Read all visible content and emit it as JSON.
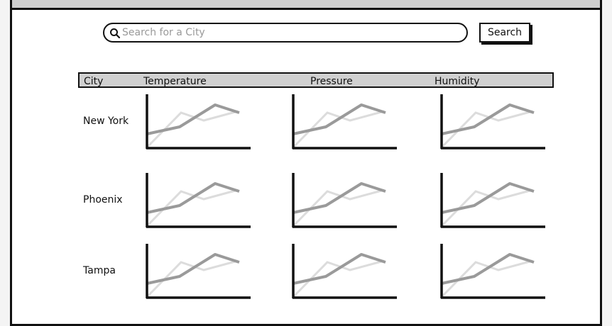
{
  "search": {
    "placeholder": "Search for a City",
    "value": ""
  },
  "search_button_label": "Search",
  "table": {
    "columns": [
      "City",
      "Temperature",
      "Pressure",
      "Humidity"
    ],
    "rows": [
      {
        "city": "New York"
      },
      {
        "city": "Phoenix"
      },
      {
        "city": "Tampa"
      }
    ]
  },
  "colors": {
    "border": "#111111",
    "header_fill": "#d0d0d0",
    "line_primary": "#9a9a9a",
    "line_secondary": "#dcdcdc"
  }
}
